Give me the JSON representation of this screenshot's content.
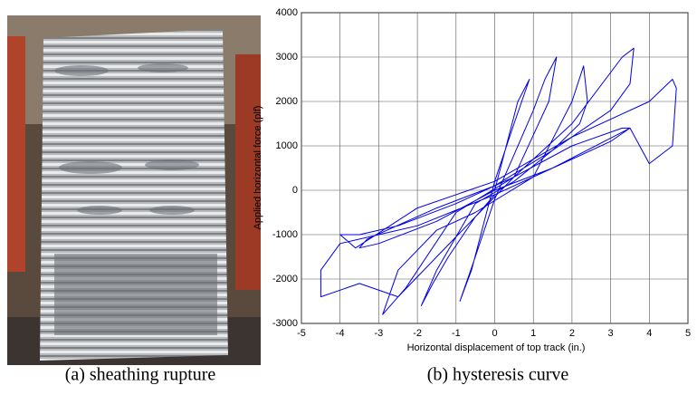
{
  "chart_data": {
    "type": "line",
    "xlabel": "Horizontal displacement of top track (in.)",
    "ylabel": "Applied horizontal force (plf)",
    "xlim": [
      -5,
      5
    ],
    "xticks": [
      -5,
      -4,
      -3,
      -2,
      -1,
      0,
      1,
      2,
      3,
      4,
      5
    ],
    "ylim": [
      -3000,
      4000
    ],
    "yticks": [
      -3000,
      -2000,
      -1000,
      0,
      1000,
      2000,
      3000,
      4000
    ],
    "grid": true,
    "color": "#0000e6",
    "x": [
      0,
      0.3,
      0.6,
      0.9,
      0.5,
      0,
      -0.3,
      -0.6,
      -0.9,
      -0.5,
      0,
      0.5,
      1.0,
      1.3,
      1.6,
      1.4,
      0.5,
      -0.5,
      -1.2,
      -1.6,
      -1.9,
      -1.5,
      -0.5,
      0.5,
      1.5,
      2.2,
      2.4,
      2.3,
      2.0,
      1.0,
      -0.5,
      -1.5,
      -2.5,
      -2.9,
      -2.3,
      -1.0,
      0.5,
      2.0,
      3.3,
      3.5,
      3.0,
      1.5,
      0,
      -1.5,
      -3.0,
      -3.5,
      -3.3,
      -1.5,
      0,
      1.5,
      3.0,
      3.5,
      3.6,
      3.3,
      2.0,
      0.5,
      -1.0,
      -2.5,
      -3.5,
      -4.0,
      -3.6,
      -2.0,
      0,
      2.0,
      4.0,
      4.6,
      4.7,
      4.6,
      4.0,
      3.5,
      1.5,
      0,
      -2.0,
      -4.0,
      -4.5,
      -4.5,
      -3.5,
      -2.5,
      -1.5,
      -0.5,
      0
    ],
    "values": [
      0,
      1000,
      2000,
      2500,
      1500,
      200,
      -800,
      -1800,
      -2500,
      -1500,
      -200,
      800,
      1800,
      2500,
      3000,
      2000,
      300,
      -600,
      -1500,
      -2100,
      -2600,
      -1800,
      -300,
      200,
      900,
      1500,
      2000,
      2800,
      2000,
      300,
      -500,
      -900,
      -1800,
      -2800,
      -2200,
      -500,
      300,
      1000,
      1400,
      1400,
      1100,
      500,
      0,
      -700,
      -1200,
      -1300,
      -1100,
      -400,
      100,
      900,
      1800,
      2400,
      3200,
      3000,
      1500,
      300,
      -300,
      -800,
      -1000,
      -1000,
      -1300,
      -400,
      200,
      1200,
      2000,
      2500,
      2300,
      1000,
      600,
      1400,
      500,
      -100,
      -800,
      -1200,
      -1800,
      -2400,
      -2100,
      -2400,
      -1500,
      -600,
      -100
    ]
  },
  "captions": [
    "(a) sheathing rupture",
    "(b) hysteresis curve"
  ]
}
